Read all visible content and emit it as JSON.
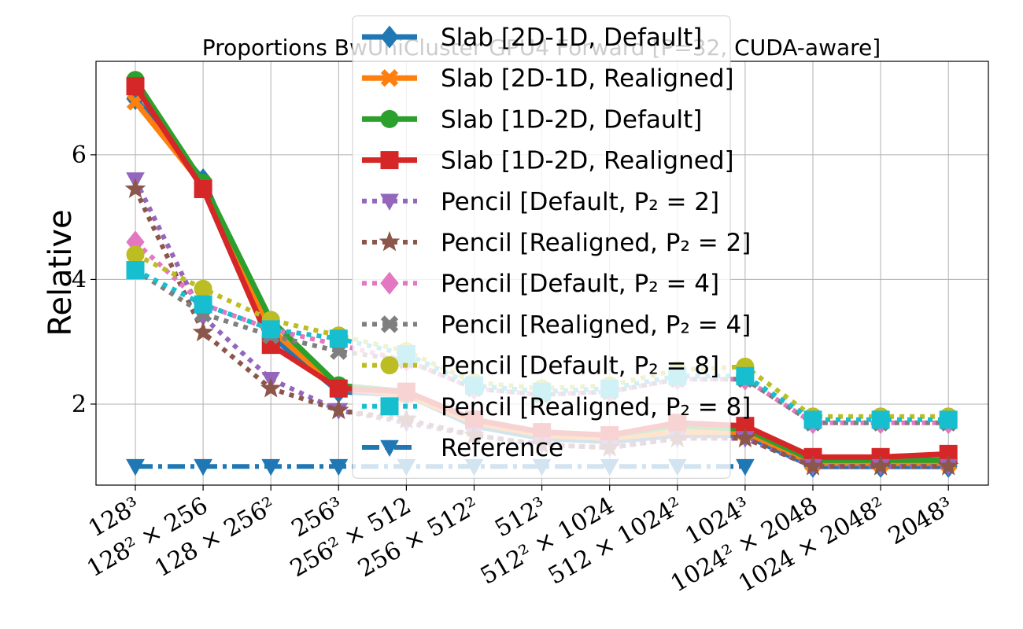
{
  "chart_data": {
    "type": "line",
    "title": "Proportions BwUniCluster GPU4 Forward [P=32, CUDA-aware]",
    "xlabel": "",
    "ylabel": "Relative",
    "ylim": [
      0.7,
      7.5
    ],
    "yticks": [
      2,
      4,
      6
    ],
    "grid": true,
    "legend_placement": "top-center",
    "categories": [
      "128³",
      "128² × 256",
      "128 × 256²",
      "256³",
      "256² × 512",
      "256 × 512²",
      "512³",
      "512² × 1024",
      "512 × 1024²",
      "1024³",
      "1024² × 2048",
      "1024 × 2048²",
      "2048³"
    ],
    "series": [
      {
        "name": "Slab [2D-1D, Default]",
        "color": "#1f77b4",
        "dash": "solid",
        "marker": "diamond",
        "values": [
          6.9,
          5.6,
          3.1,
          2.2,
          2.15,
          1.65,
          1.45,
          1.4,
          1.5,
          1.5,
          1.0,
          1.0,
          1.0
        ]
      },
      {
        "name": "Slab [2D-1D, Realigned]",
        "color": "#ff7f0e",
        "dash": "solid",
        "marker": "x",
        "values": [
          6.85,
          5.5,
          3.2,
          2.25,
          2.15,
          1.7,
          1.5,
          1.45,
          1.55,
          1.55,
          1.05,
          1.05,
          1.05
        ]
      },
      {
        "name": "Slab [1D-2D, Default]",
        "color": "#2ca02c",
        "dash": "solid",
        "marker": "circle",
        "values": [
          7.2,
          5.55,
          3.35,
          2.3,
          2.2,
          1.75,
          1.55,
          1.5,
          1.65,
          1.6,
          1.1,
          1.1,
          1.1
        ]
      },
      {
        "name": "Slab [1D-2D, Realigned]",
        "color": "#d62728",
        "dash": "solid",
        "marker": "square",
        "values": [
          7.1,
          5.45,
          2.95,
          2.25,
          2.2,
          1.75,
          1.55,
          1.5,
          1.7,
          1.65,
          1.15,
          1.15,
          1.2
        ]
      },
      {
        "name": "Pencil [Default, P₂ = 2]",
        "color": "#9467bd",
        "dash": "dotted",
        "marker": "triangle-down",
        "values": [
          5.6,
          3.4,
          2.4,
          1.9,
          1.7,
          1.5,
          1.35,
          1.3,
          1.45,
          1.45,
          1.0,
          1.0,
          1.0
        ]
      },
      {
        "name": "Pencil [Realigned, P₂ = 2]",
        "color": "#8c564b",
        "dash": "dotted",
        "marker": "star",
        "values": [
          5.45,
          3.15,
          2.25,
          1.9,
          1.75,
          1.5,
          1.35,
          1.3,
          1.45,
          1.45,
          1.0,
          1.0,
          1.0
        ]
      },
      {
        "name": "Pencil [Default, P₂ = 4]",
        "color": "#e377c2",
        "dash": "dotted",
        "marker": "diamond",
        "values": [
          4.6,
          3.6,
          3.2,
          2.95,
          2.7,
          2.25,
          2.15,
          2.2,
          2.4,
          2.4,
          1.7,
          1.7,
          1.7
        ]
      },
      {
        "name": "Pencil [Realigned, P₂ = 4]",
        "color": "#7f7f7f",
        "dash": "dotted",
        "marker": "x",
        "values": [
          4.15,
          3.45,
          3.1,
          2.85,
          2.7,
          2.25,
          2.15,
          2.2,
          2.4,
          2.4,
          1.7,
          1.7,
          1.7
        ]
      },
      {
        "name": "Pencil [Default, P₂ = 8]",
        "color": "#bcbd22",
        "dash": "dotted",
        "marker": "circle",
        "values": [
          4.4,
          3.85,
          3.35,
          3.1,
          2.85,
          2.35,
          2.25,
          2.3,
          2.55,
          2.6,
          1.8,
          1.8,
          1.8
        ]
      },
      {
        "name": "Pencil [Realigned, P₂ = 8]",
        "color": "#17becf",
        "dash": "dotted",
        "marker": "square",
        "values": [
          4.15,
          3.6,
          3.2,
          3.05,
          2.8,
          2.3,
          2.2,
          2.25,
          2.45,
          2.45,
          1.75,
          1.75,
          1.75
        ]
      },
      {
        "name": "Reference",
        "color": "#1f77b4",
        "dash": "dashdot",
        "marker": "triangle-down",
        "values": [
          1.0,
          1.0,
          1.0,
          1.0,
          1.0,
          1.0,
          1.0,
          1.0,
          1.0,
          1.0,
          null,
          null,
          null
        ]
      }
    ]
  }
}
